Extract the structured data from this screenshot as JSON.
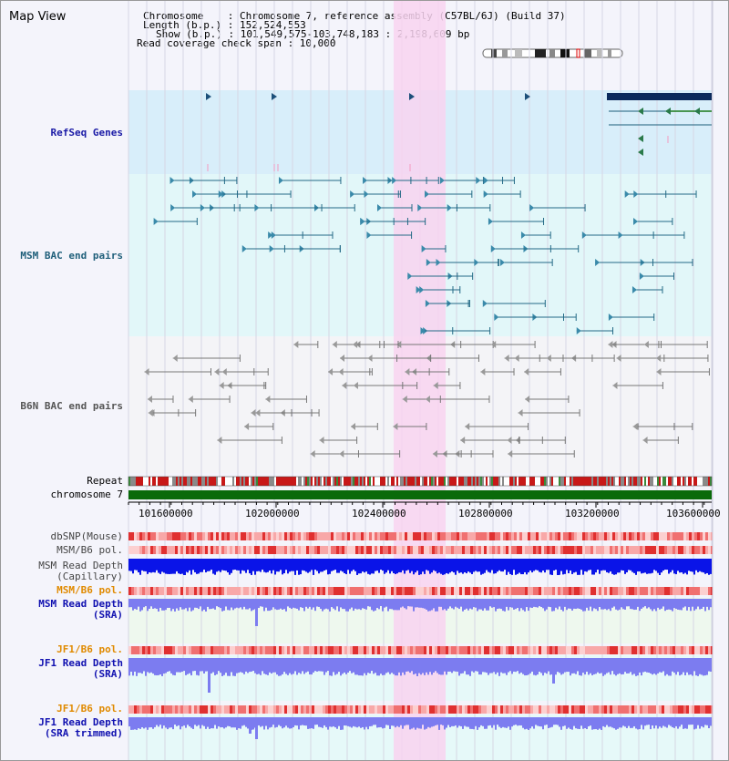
{
  "header": {
    "view_title": "Map View",
    "chromosome_line": "Chromosome    : Chromosome 7, reference assembly (C57BL/6J) (Build 37)",
    "length_line": "Length (b.p.) : 152,524,553",
    "show_line": "Show (b.p.) : 101,549,575-103,748,183 : 2,198,609 bp",
    "coverage_line": "Read coverage check span : 10,000"
  },
  "tracks": {
    "refseq_genes": "RefSeq Genes",
    "msm_bac": "MSM BAC end pairs",
    "b6n_bac": "B6N BAC end pairs",
    "repeat": "Repeat",
    "chromosome": "chromosome 7",
    "dbsnp": "dbSNP(Mouse)",
    "msm_b6_pol_1": "MSM/B6 pol.",
    "msm_depth_cap": "MSM Read Depth\n(Capillary)",
    "msm_b6_pol_2": "MSM/B6 pol.",
    "msm_depth_sra": "MSM Read Depth\n(SRA)",
    "jf1_b6_pol_1": "JF1/B6 pol.",
    "jf1_depth_sra": "JF1 Read Depth\n(SRA)",
    "jf1_b6_pol_2": "JF1/B6 pol.",
    "jf1_depth_trim": "JF1 Read Depth\n(SRA trimmed)"
  },
  "axis": {
    "ticks": [
      "101600000",
      "102000000",
      "102400000",
      "102800000",
      "103200000",
      "103600000"
    ]
  },
  "colors": {
    "refseq_label": "#1a1aa6",
    "msm_label": "#1f5f7a",
    "b6n_label": "#555555",
    "orange_label": "#e08a00",
    "blue_label": "#1010b0",
    "highlight": "#f8d4f0",
    "refseq_bg": "#d8eefa",
    "msm_bg": "#e2f7f9",
    "b6n_bg": "#f4f4f7",
    "depth_dark": "#0a14e8",
    "depth_light": "#7c7cf0",
    "chrom_bar": "#0a6a0a"
  }
}
